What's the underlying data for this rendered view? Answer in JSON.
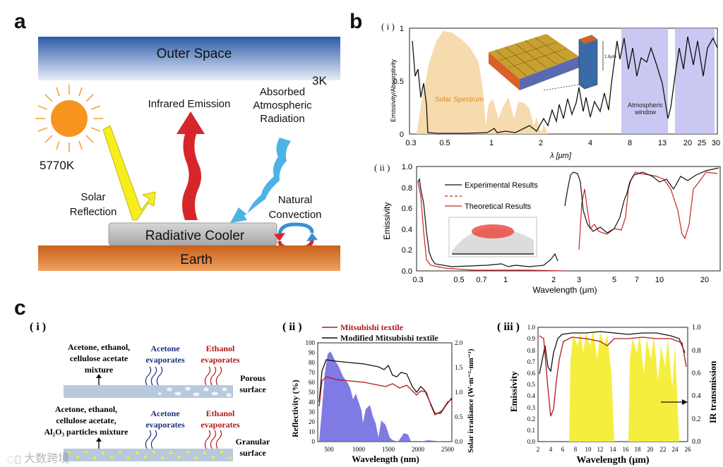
{
  "panels": {
    "a": "a",
    "b": "b",
    "c": "c"
  },
  "panel_a": {
    "outer_space": "Outer Space",
    "temp_space": "3K",
    "temp_sun": "5770K",
    "infrared_emission": "Infrared Emission",
    "absorbed": [
      "Absorbed",
      "Atmospheric",
      "Radiation"
    ],
    "solar_reflection": [
      "Solar",
      "Reflection"
    ],
    "natural_convection": [
      "Natural",
      "Convection"
    ],
    "radiative_cooler": "Radiative Cooler",
    "earth": "Earth",
    "colors": {
      "space": "#2f5faa",
      "sun": "#f7941d",
      "infrared": "#d7262a",
      "absorbed": "#4db3e6",
      "reflect": "#f6ed1c",
      "earth": "#d9772a",
      "cooler": "#b8b8b8"
    }
  },
  "panel_b": {
    "sub_i": "( i )",
    "sub_ii": "( ii )",
    "chart_i": {
      "type": "line",
      "ylabel": "Emissivity/Absorptivity",
      "xlabel": "λ [μm]",
      "yticks": [
        "0",
        "0.5",
        "1"
      ],
      "xticks": [
        "0.3",
        "0.5",
        "1",
        "2",
        "4",
        "8",
        "13",
        "20",
        "25",
        "30"
      ],
      "solar_label": "Solar Spectrum",
      "window_label": [
        "Atmospheric",
        "window"
      ],
      "inset_scale": "1.8μm"
    },
    "chart_ii": {
      "type": "line",
      "ylabel": "Emissivity",
      "xlabel": "Wavelength (μm)",
      "yticks": [
        "0.0",
        "0.2",
        "0.4",
        "0.6",
        "0.8",
        "1.0"
      ],
      "xticks": [
        "0.3",
        "0.5",
        "0.7",
        "1",
        "2",
        "3",
        "5",
        "7",
        "10",
        "20"
      ],
      "legend": [
        "Experimental Results",
        "Theoretical Results"
      ]
    }
  },
  "panel_c": {
    "sub_i": "( i )",
    "sub_ii": "( ii )",
    "sub_iii": "( iii )",
    "diagram": {
      "mix1": [
        "Acetone, ethanol,",
        "cellulose acetate",
        "mixture"
      ],
      "acetone_evap": [
        "Acetone",
        "evaporates"
      ],
      "ethanol_evap": [
        "Ethanol",
        "evaporates"
      ],
      "porous": [
        "Porous",
        "surface"
      ],
      "mix2": [
        "Acetone, ethanol,",
        "cellulose acetate,",
        "Al₂O₃ particles mixture"
      ],
      "granular": [
        "Granular",
        "surface"
      ]
    },
    "chart_ii": {
      "type": "line",
      "legend": [
        "Mitsubishi textile",
        "Modified Mitsubishi textile"
      ],
      "ylabel_left": "Reflectivity (%)",
      "ylabel_right": "Solar irradiance (W·m⁻²·nm⁻¹)",
      "xlabel": "Wavelength (nm)",
      "yticks_left": [
        "0",
        "10",
        "20",
        "30",
        "40",
        "50",
        "60",
        "70",
        "80",
        "90",
        "100"
      ],
      "yticks_right": [
        "0.0",
        "0.5",
        "1.0",
        "1.5",
        "2.0"
      ],
      "xticks": [
        "500",
        "1000",
        "1500",
        "2000",
        "2500"
      ]
    },
    "chart_iii": {
      "type": "line",
      "ylabel_left": "Emissivity",
      "ylabel_right": "IR transmission",
      "xlabel": "Wavelength (μm)",
      "yticks_left": [
        "0.0",
        "0.1",
        "0.2",
        "0.3",
        "0.4",
        "0.5",
        "0.6",
        "0.7",
        "0.8",
        "0.9",
        "1.0"
      ],
      "yticks_right": [
        "0.0",
        "0.2",
        "0.4",
        "0.6",
        "0.8",
        "1.0"
      ],
      "xticks": [
        "2",
        "4",
        "6",
        "8",
        "10",
        "12",
        "14",
        "16",
        "18",
        "20",
        "22",
        "24",
        "26"
      ]
    }
  },
  "watermark": "大数跨境"
}
